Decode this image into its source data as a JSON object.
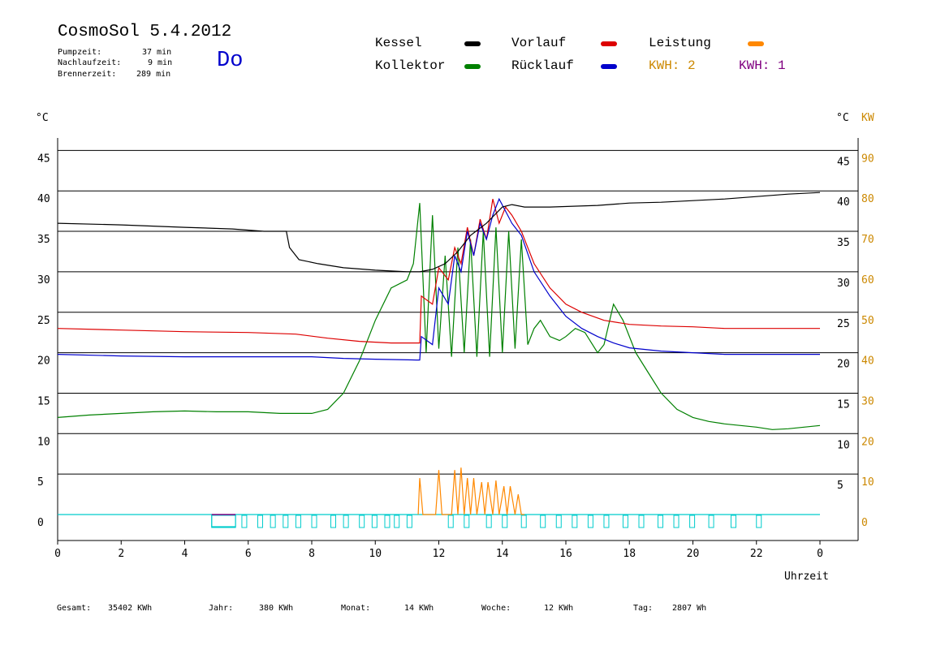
{
  "header": {
    "title": "CosmoSol 5.4.2012",
    "day": "Do",
    "stats": [
      {
        "label": "Pumpzeit:",
        "value": "37 min"
      },
      {
        "label": "Nachlaufzeit:",
        "value": "9 min"
      },
      {
        "label": "Brennerzeit:",
        "value": "289 min"
      }
    ]
  },
  "legend": {
    "items": [
      {
        "label": "Kessel",
        "color": "#000000"
      },
      {
        "label": "Vorlauf",
        "color": "#dd0000"
      },
      {
        "label": "Leistung",
        "color": "#ff8800"
      },
      {
        "label": "Kollektor",
        "color": "#008000"
      },
      {
        "label": "Rücklauf",
        "color": "#0000cc"
      }
    ],
    "kwh_orange": "KWH: 2",
    "kwh_purple": "KWH: 1",
    "kwh_orange_color": "#cc8800",
    "kwh_purple_color": "#800080"
  },
  "footer": [
    {
      "label": "Gesamt:",
      "value": "35402 KWh"
    },
    {
      "label": "Jahr:",
      "value": "380 KWh"
    },
    {
      "label": "Monat:",
      "value": "14 KWh"
    },
    {
      "label": "Woche:",
      "value": "12 KWh"
    },
    {
      "label": "Tag:",
      "value": "2807 Wh"
    }
  ],
  "chart_data": {
    "type": "line",
    "xlabel": "Uhrzeit",
    "ylabel_left": "°C",
    "ylabel_right": "°C",
    "ylabel_right2": "KW",
    "xlim": [
      0,
      24
    ],
    "ylim": [
      -3,
      48
    ],
    "x_ticks": [
      "0",
      "2",
      "4",
      "6",
      "8",
      "10",
      "12",
      "14",
      "16",
      "18",
      "20",
      "22",
      "0"
    ],
    "y_ticks_left": [
      "0",
      "5",
      "10",
      "15",
      "20",
      "25",
      "30",
      "35",
      "40",
      "45"
    ],
    "y_ticks_right": [
      "5",
      "10",
      "15",
      "20",
      "25",
      "30",
      "35",
      "40",
      "45"
    ],
    "y_ticks_kw": [
      "0",
      "10",
      "20",
      "30",
      "40",
      "50",
      "60",
      "70",
      "80",
      "90"
    ],
    "grid": true,
    "series": [
      {
        "name": "Kessel",
        "color": "#000000",
        "x": [
          0,
          2,
          4,
          5.5,
          6.5,
          7.2,
          7.3,
          7.6,
          8.2,
          9,
          10,
          11,
          11.4,
          11.8,
          12.2,
          12.6,
          13,
          13.5,
          14,
          14.3,
          14.7,
          15.5,
          17,
          18,
          19,
          20,
          21,
          22,
          23,
          24
        ],
        "values": [
          36.0,
          35.8,
          35.5,
          35.3,
          35.0,
          35.0,
          33.0,
          31.5,
          31.0,
          30.5,
          30.2,
          30.0,
          30.0,
          30.3,
          31.0,
          32.5,
          34.5,
          36.0,
          38.0,
          38.3,
          38.0,
          38.0,
          38.2,
          38.5,
          38.6,
          38.8,
          39.0,
          39.3,
          39.6,
          39.8
        ]
      },
      {
        "name": "Vorlauf",
        "color": "#dd0000",
        "x": [
          0,
          2,
          4,
          6,
          7.5,
          8.5,
          9.5,
          10.5,
          11.4,
          11.45,
          11.8,
          12.0,
          12.3,
          12.5,
          12.7,
          12.9,
          13.1,
          13.3,
          13.5,
          13.7,
          13.9,
          14.1,
          14.3,
          14.6,
          15,
          15.5,
          16,
          16.5,
          17.2,
          18,
          19,
          20,
          21,
          22,
          23,
          24
        ],
        "values": [
          23.0,
          22.8,
          22.6,
          22.5,
          22.3,
          21.8,
          21.4,
          21.2,
          21.2,
          27.0,
          26.0,
          30.5,
          29.0,
          33.0,
          31.0,
          35.5,
          32.0,
          36.5,
          34.0,
          39.0,
          36.0,
          38.0,
          37.0,
          35.0,
          31.0,
          28.0,
          26.0,
          25.0,
          24.0,
          23.5,
          23.3,
          23.2,
          23.0,
          23.0,
          23.0,
          23.0
        ]
      },
      {
        "name": "Rücklauf",
        "color": "#0000cc",
        "x": [
          0,
          2,
          4,
          6,
          8,
          9,
          10,
          11.3,
          11.4,
          11.45,
          11.8,
          12.0,
          12.3,
          12.5,
          12.7,
          12.9,
          13.1,
          13.3,
          13.5,
          13.7,
          13.9,
          14.1,
          14.3,
          14.6,
          15,
          15.5,
          16,
          16.5,
          17,
          17.5,
          18,
          19,
          20,
          21,
          22,
          23,
          24
        ],
        "values": [
          19.8,
          19.6,
          19.5,
          19.5,
          19.5,
          19.3,
          19.2,
          19.1,
          19.1,
          22.0,
          21.0,
          28.0,
          26.0,
          32.0,
          30.0,
          35.0,
          32.0,
          36.0,
          34.0,
          37.0,
          39.0,
          37.5,
          36.0,
          34.5,
          30.0,
          27.0,
          24.5,
          23.0,
          22.0,
          21.2,
          20.6,
          20.2,
          20.0,
          19.8,
          19.8,
          19.8,
          19.8
        ]
      },
      {
        "name": "Kollektor",
        "color": "#008000",
        "x": [
          0,
          1,
          2,
          3,
          4,
          5,
          6,
          7,
          8,
          8.5,
          9,
          9.5,
          10,
          10.5,
          11,
          11.2,
          11.4,
          11.6,
          11.8,
          12.0,
          12.2,
          12.4,
          12.6,
          12.8,
          13.0,
          13.2,
          13.4,
          13.6,
          13.8,
          14.0,
          14.2,
          14.4,
          14.6,
          14.8,
          15.0,
          15.2,
          15.5,
          15.8,
          16.0,
          16.3,
          16.6,
          17.0,
          17.2,
          17.5,
          17.8,
          18.2,
          18.6,
          19,
          19.5,
          20,
          20.5,
          21,
          21.5,
          22,
          22.5,
          23,
          23.5,
          24
        ],
        "values": [
          12.0,
          12.3,
          12.5,
          12.7,
          12.8,
          12.7,
          12.7,
          12.5,
          12.5,
          13.0,
          15.0,
          19.0,
          24.0,
          28.0,
          29.0,
          31.0,
          38.5,
          20.0,
          37.0,
          20.5,
          32.0,
          19.5,
          33.0,
          20.0,
          34.0,
          19.5,
          35.0,
          19.5,
          35.5,
          20.0,
          35.0,
          20.5,
          34.0,
          21.0,
          23.0,
          24.0,
          22.0,
          21.5,
          22.0,
          23.0,
          22.5,
          20.0,
          21.0,
          26.0,
          24.0,
          20.0,
          17.5,
          15.0,
          13.0,
          12.0,
          11.5,
          11.2,
          11.0,
          10.8,
          10.5,
          10.6,
          10.8,
          11.0
        ]
      },
      {
        "name": "Leistung",
        "color": "#ff8800",
        "x": [
          11.35,
          11.4,
          11.5,
          11.9,
          12.0,
          12.1,
          12.4,
          12.5,
          12.6,
          12.7,
          12.8,
          12.9,
          13.0,
          13.1,
          13.2,
          13.35,
          13.45,
          13.55,
          13.7,
          13.8,
          13.9,
          14.05,
          14.15,
          14.25,
          14.4,
          14.5,
          14.6,
          14.7
        ],
        "values": [
          0,
          4.5,
          0,
          0,
          5.5,
          0,
          0,
          5.5,
          0,
          5.8,
          0,
          4.5,
          0,
          4.5,
          0,
          4.0,
          0,
          4.0,
          0,
          4.2,
          0,
          3.5,
          0,
          3.5,
          0,
          2.5,
          0,
          0
        ]
      },
      {
        "name": "Pumpe",
        "color": "#00cccc",
        "x": [
          0,
          4.85,
          4.85,
          5.6,
          5.6,
          24
        ],
        "values": [
          0,
          0,
          -1.5,
          -1.5,
          0,
          0
        ]
      }
    ]
  }
}
